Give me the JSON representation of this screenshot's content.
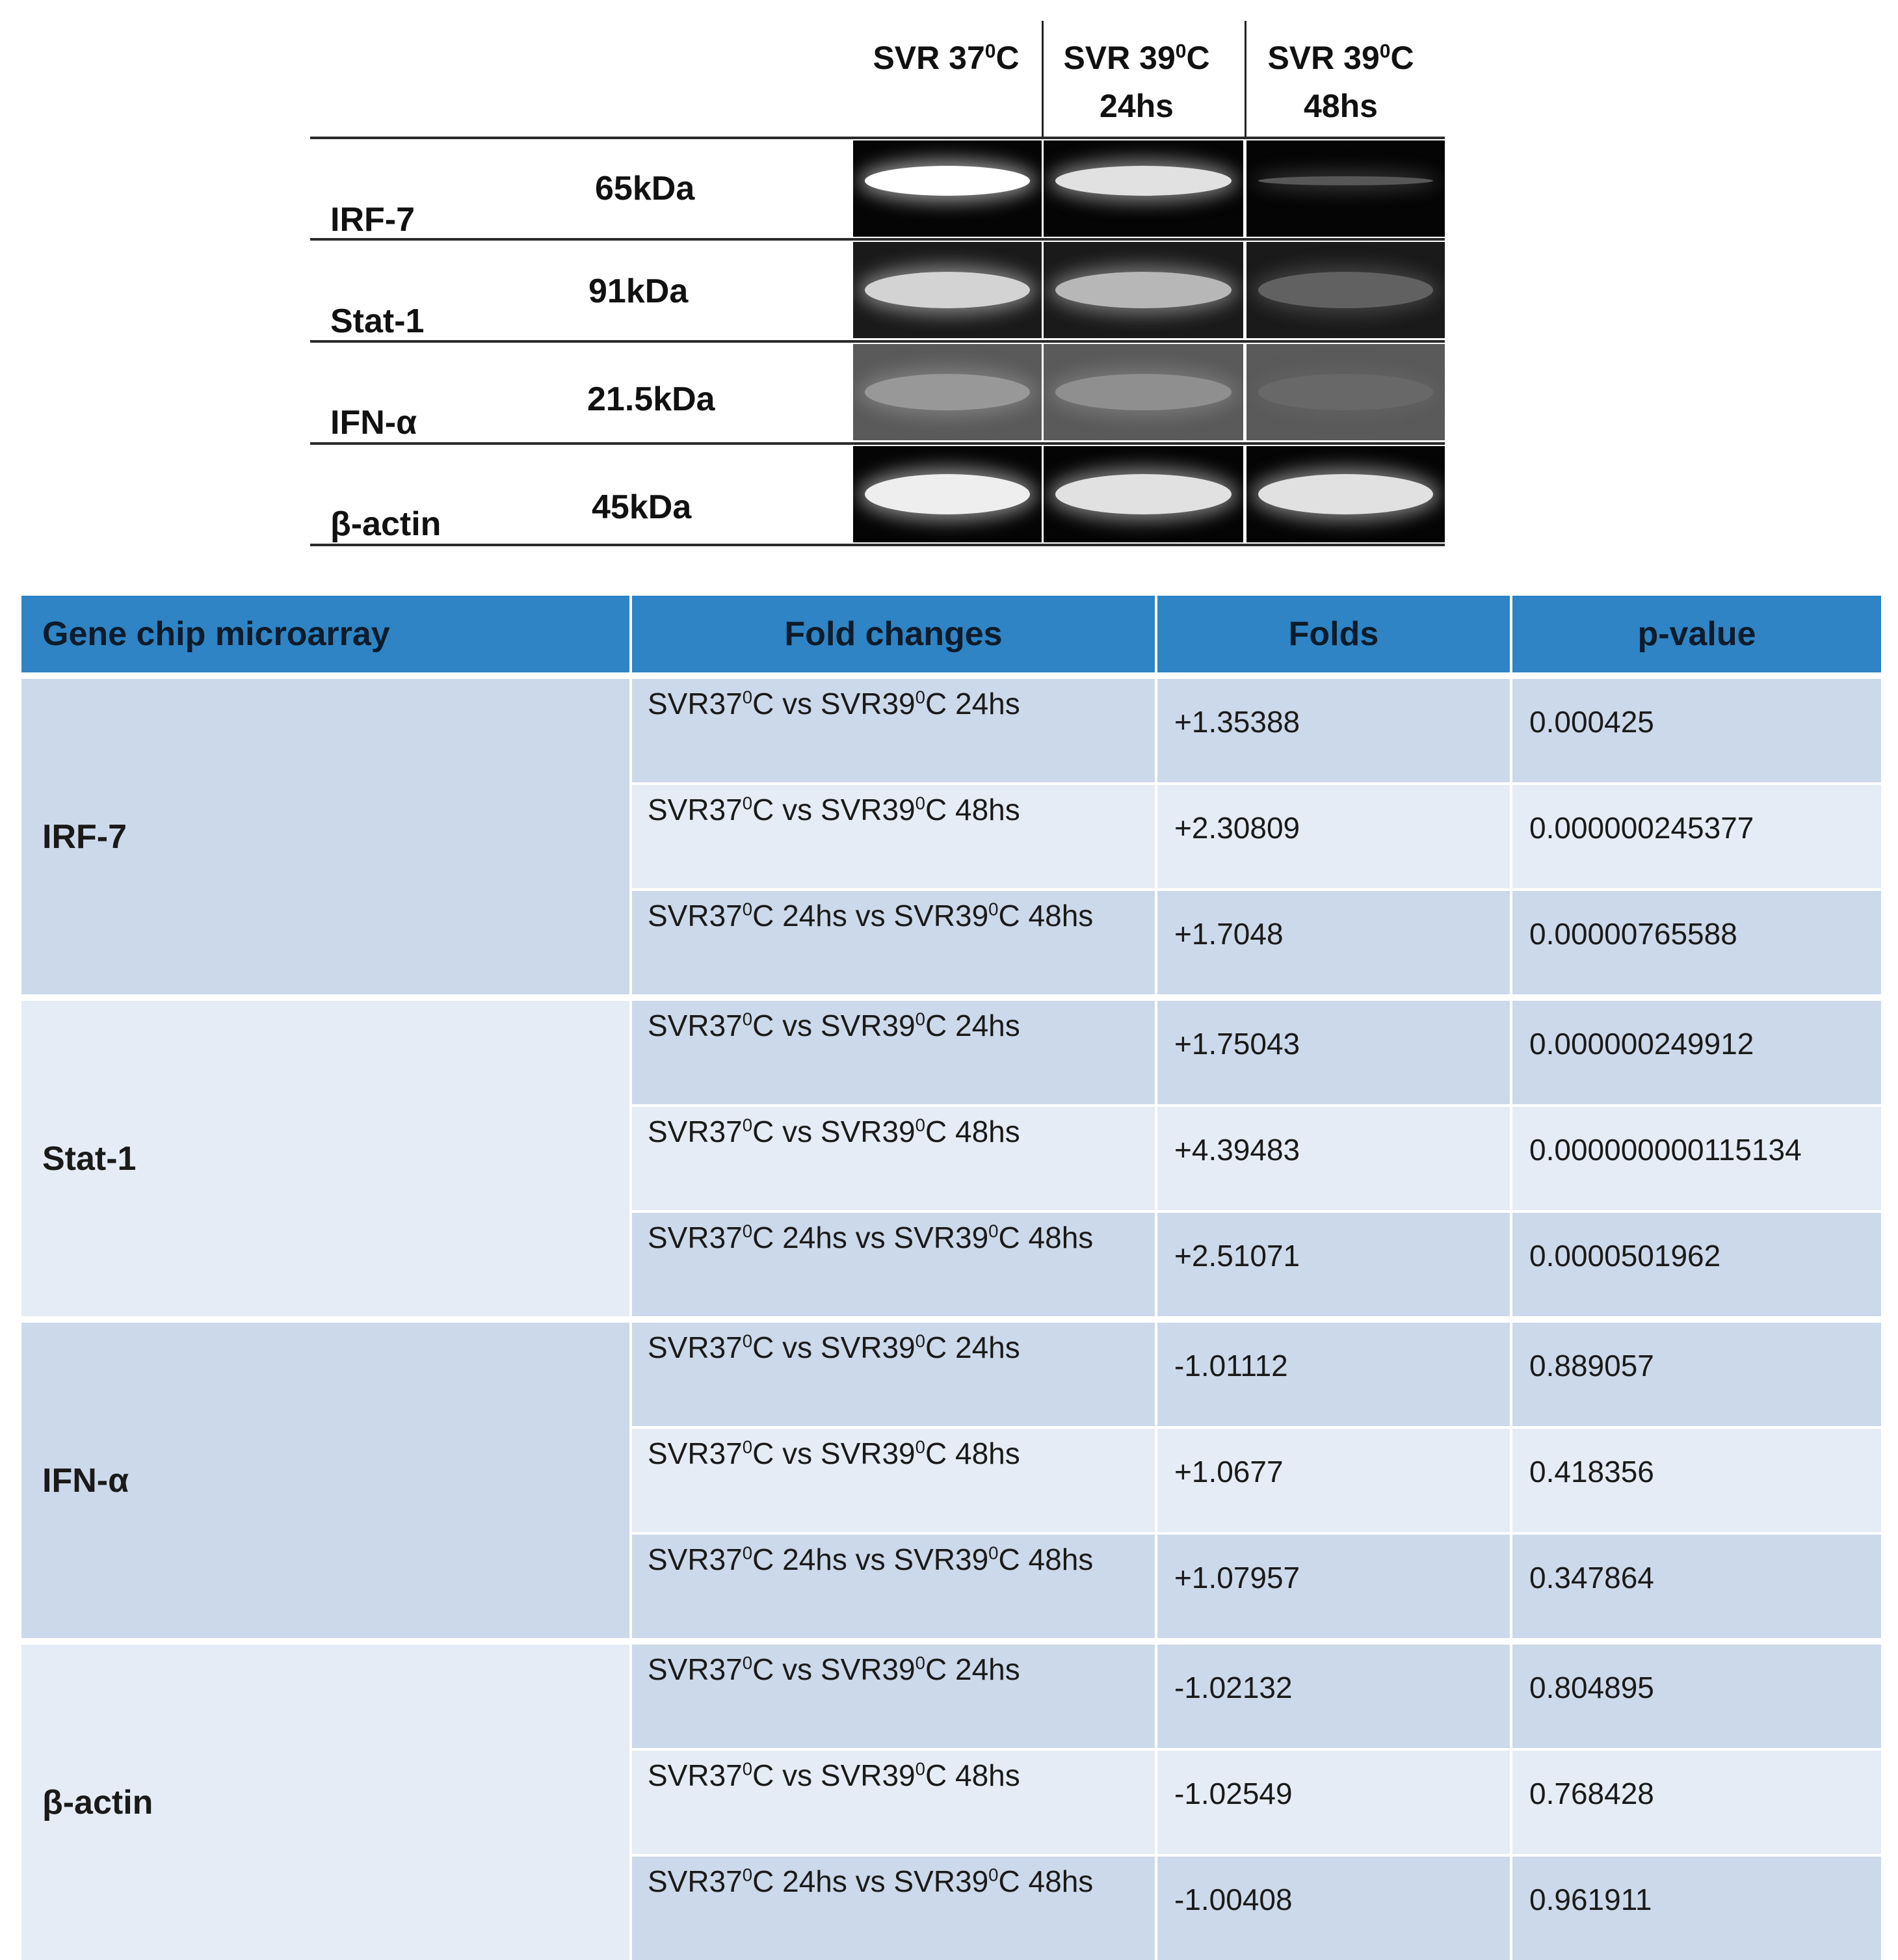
{
  "blot": {
    "lanes": [
      {
        "line1": "SVR 37",
        "sup": "0",
        "unit": "C",
        "line2": ""
      },
      {
        "line1": "SVR 39",
        "sup": "0",
        "unit": "C",
        "line2": "24hs"
      },
      {
        "line1": "SVR 39",
        "sup": "0",
        "unit": "C",
        "line2": "48hs"
      }
    ],
    "rows": [
      {
        "name": "IRF-7",
        "kda": "65kDa",
        "band_intensity": [
          1.0,
          0.9,
          0.35
        ]
      },
      {
        "name": "Stat-1",
        "kda": "91kDa",
        "band_intensity": [
          0.85,
          0.75,
          0.35
        ]
      },
      {
        "name": "IFN-α",
        "kda": "21.5kDa",
        "band_intensity": [
          0.5,
          0.45,
          0.1
        ]
      },
      {
        "name": "β-actin",
        "kda": "45kDa",
        "band_intensity": [
          0.95,
          0.9,
          0.9
        ]
      }
    ]
  },
  "table": {
    "headers": [
      "Gene chip microarray",
      "Fold changes",
      "Folds",
      "p-value"
    ],
    "groups": [
      {
        "gene": "IRF-7",
        "rows": [
          {
            "cmp": [
              "SVR37",
              "0",
              "C vs SVR39",
              "0",
              "C 24hs"
            ],
            "fold": "+1.35388",
            "p": "0.000425"
          },
          {
            "cmp": [
              "SVR37",
              "0",
              "C vs SVR39",
              "0",
              "C 48hs"
            ],
            "fold": "+2.30809",
            "p": "0.000000245377"
          },
          {
            "cmp": [
              "SVR37",
              "0",
              "C 24hs vs SVR39",
              "0",
              "C 48hs"
            ],
            "fold": "+1.7048",
            "p": "0.00000765588"
          }
        ]
      },
      {
        "gene": "Stat-1",
        "rows": [
          {
            "cmp": [
              "SVR37",
              "0",
              "C vs SVR39",
              "0",
              "C 24hs"
            ],
            "fold": "+1.75043",
            "p": "0.000000249912"
          },
          {
            "cmp": [
              "SVR37",
              "0",
              "C vs SVR39",
              "0",
              "C 48hs"
            ],
            "fold": "+4.39483",
            "p": "0.000000000115134"
          },
          {
            "cmp": [
              "SVR37",
              "0",
              "C 24hs vs SVR39",
              "0",
              "C 48hs"
            ],
            "fold": "+2.51071",
            "p": "0.0000501962"
          }
        ]
      },
      {
        "gene": "IFN-α",
        "rows": [
          {
            "cmp": [
              "SVR37",
              "0",
              "C vs SVR39",
              "0",
              "C 24hs"
            ],
            "fold": "-1.01112",
            "p": "0.889057"
          },
          {
            "cmp": [
              "SVR37",
              "0",
              "C vs SVR39",
              "0",
              "C 48hs"
            ],
            "fold": "+1.0677",
            "p": "0.418356"
          },
          {
            "cmp": [
              "SVR37",
              "0",
              "C 24hs vs SVR39",
              "0",
              "C 48hs"
            ],
            "fold": "+1.07957",
            "p": "0.347864"
          }
        ]
      },
      {
        "gene": "β-actin",
        "rows": [
          {
            "cmp": [
              "SVR37",
              "0",
              "C vs SVR39",
              "0",
              "C 24hs"
            ],
            "fold": "-1.02132",
            "p": "0.804895"
          },
          {
            "cmp": [
              "SVR37",
              "0",
              "C vs SVR39",
              "0",
              "C 48hs"
            ],
            "fold": "-1.02549",
            "p": "0.768428"
          },
          {
            "cmp": [
              "SVR37",
              "0",
              "C 24hs vs SVR39",
              "0",
              "C 48hs"
            ],
            "fold": "-1.00408",
            "p": "0.961911"
          }
        ]
      }
    ]
  },
  "colors": {
    "header_bg": "#2e84c4",
    "row_dark": "#ccd9ea",
    "row_light": "#e6ecf5"
  }
}
